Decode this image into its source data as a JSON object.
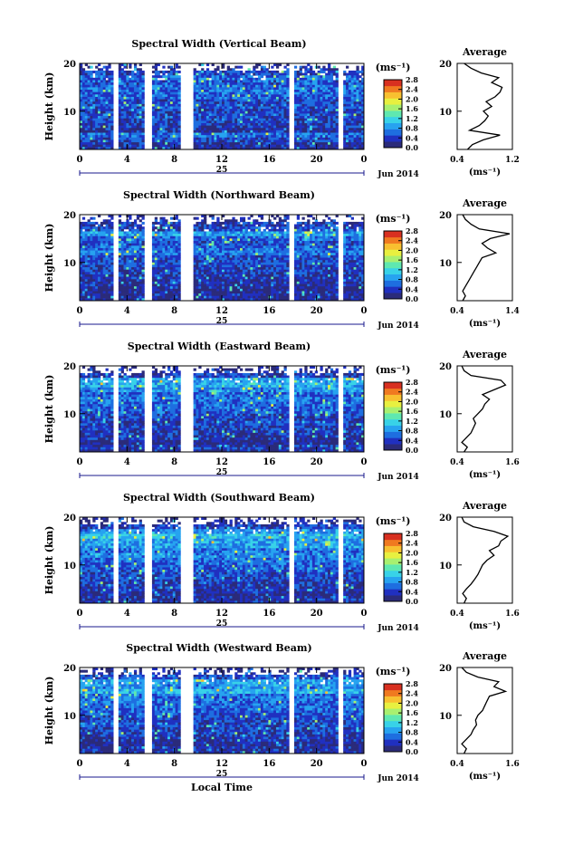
{
  "figure": {
    "xlabel": "Local Time",
    "date_label": "Jun 2014",
    "day_label": "25",
    "unit_label": "(ms⁻¹)",
    "avg_title": "Average",
    "ylabel": "Height (km)",
    "colormap": [
      "#2b2b7a",
      "#2030c0",
      "#1e6ee0",
      "#27a3f0",
      "#38d2e8",
      "#5fe8b0",
      "#a8f070",
      "#e8f040",
      "#f8c030",
      "#f07a20",
      "#d83020"
    ],
    "missing_color": "#ffffff"
  },
  "chart_data": [
    {
      "type": "heatmap",
      "title": "Spectral Width (Vertical Beam)",
      "xlabel": "",
      "ylabel": "Height (km)",
      "xlim": [
        0,
        24
      ],
      "ylim": [
        2,
        20
      ],
      "xticks": [
        "0",
        "4",
        "8",
        "12",
        "16",
        "20",
        "0"
      ],
      "yticks": [
        "10",
        "20"
      ],
      "colorbar_ticks": [
        "0.0",
        "0.4",
        "0.8",
        "1.2",
        "1.6",
        "2.0",
        "2.4",
        "2.8"
      ],
      "data_gaps_hours": [
        [
          2.8,
          3.3
        ],
        [
          5.5,
          6.0
        ],
        [
          8.5,
          9.5
        ],
        [
          17.6,
          18.0
        ],
        [
          21.8,
          22.2
        ]
      ],
      "average": {
        "xlim": [
          0.4,
          1.2
        ],
        "xticks": [
          "0.4",
          "1.2"
        ],
        "xlabel": "(ms⁻¹)",
        "height_km": [
          2,
          3,
          4,
          5,
          6,
          7,
          8,
          9,
          10,
          11,
          12,
          13,
          14,
          15,
          16,
          17,
          18,
          19,
          20
        ],
        "width_ms": [
          0.55,
          0.62,
          0.78,
          1.02,
          0.58,
          0.72,
          0.8,
          0.85,
          0.78,
          0.9,
          0.82,
          0.95,
          1.02,
          1.05,
          0.9,
          1.0,
          0.75,
          0.6,
          0.5
        ]
      }
    },
    {
      "type": "heatmap",
      "title": "Spectral Width (Northward Beam)",
      "xlabel": "",
      "ylabel": "Height (km)",
      "xlim": [
        0,
        24
      ],
      "ylim": [
        2,
        20
      ],
      "xticks": [
        "0",
        "4",
        "8",
        "12",
        "16",
        "20",
        "0"
      ],
      "yticks": [
        "10",
        "20"
      ],
      "colorbar_ticks": [
        "0.0",
        "0.4",
        "0.8",
        "1.2",
        "1.6",
        "2.0",
        "2.4",
        "2.8"
      ],
      "data_gaps_hours": [
        [
          2.8,
          3.3
        ],
        [
          5.5,
          6.0
        ],
        [
          8.5,
          9.5
        ],
        [
          17.6,
          18.0
        ],
        [
          21.8,
          22.2
        ]
      ],
      "average": {
        "xlim": [
          0.4,
          1.4
        ],
        "xticks": [
          "0.4",
          "1.4"
        ],
        "xlabel": "(ms⁻¹)",
        "height_km": [
          2,
          3,
          4,
          5,
          6,
          7,
          8,
          9,
          10,
          11,
          12,
          13,
          14,
          15,
          16,
          17,
          18,
          19,
          20
        ],
        "width_ms": [
          0.5,
          0.55,
          0.5,
          0.55,
          0.6,
          0.65,
          0.7,
          0.75,
          0.8,
          0.85,
          1.1,
          0.95,
          0.85,
          1.0,
          1.35,
          0.8,
          0.65,
          0.55,
          0.5
        ]
      }
    },
    {
      "type": "heatmap",
      "title": "Spectral Width (Eastward Beam)",
      "xlabel": "",
      "ylabel": "Height (km)",
      "xlim": [
        0,
        24
      ],
      "ylim": [
        2,
        20
      ],
      "xticks": [
        "0",
        "4",
        "8",
        "12",
        "16",
        "20",
        "0"
      ],
      "yticks": [
        "10",
        "20"
      ],
      "colorbar_ticks": [
        "0.0",
        "0.4",
        "0.8",
        "1.2",
        "1.6",
        "2.0",
        "2.4",
        "2.8"
      ],
      "data_gaps_hours": [
        [
          2.8,
          3.3
        ],
        [
          5.5,
          6.0
        ],
        [
          8.5,
          9.5
        ],
        [
          17.6,
          18.0
        ],
        [
          21.8,
          22.2
        ]
      ],
      "average": {
        "xlim": [
          0.4,
          1.6
        ],
        "xticks": [
          "0.4",
          "1.6"
        ],
        "xlabel": "(ms⁻¹)",
        "height_km": [
          2,
          3,
          4,
          5,
          6,
          7,
          8,
          9,
          10,
          11,
          12,
          13,
          14,
          15,
          16,
          17,
          18,
          19,
          20
        ],
        "width_ms": [
          0.55,
          0.62,
          0.5,
          0.6,
          0.7,
          0.75,
          0.8,
          0.75,
          0.85,
          0.95,
          1.0,
          1.1,
          0.95,
          1.2,
          1.45,
          1.35,
          0.7,
          0.55,
          0.5
        ]
      }
    },
    {
      "type": "heatmap",
      "title": "Spectral Width (Southward Beam)",
      "xlabel": "",
      "ylabel": "Height (km)",
      "xlim": [
        0,
        24
      ],
      "ylim": [
        2,
        20
      ],
      "xticks": [
        "0",
        "4",
        "8",
        "12",
        "16",
        "20",
        "0"
      ],
      "yticks": [
        "10",
        "20"
      ],
      "colorbar_ticks": [
        "0.0",
        "0.4",
        "0.8",
        "1.2",
        "1.6",
        "2.0",
        "2.4",
        "2.8"
      ],
      "data_gaps_hours": [
        [
          2.8,
          3.3
        ],
        [
          5.5,
          6.0
        ],
        [
          8.5,
          9.5
        ],
        [
          17.6,
          18.0
        ],
        [
          21.8,
          22.2
        ]
      ],
      "average": {
        "xlim": [
          0.4,
          1.6
        ],
        "xticks": [
          "0.4",
          "1.6"
        ],
        "xlabel": "(ms⁻¹)",
        "height_km": [
          2,
          3,
          4,
          5,
          6,
          7,
          8,
          9,
          10,
          11,
          12,
          13,
          14,
          15,
          16,
          17,
          18,
          19,
          20
        ],
        "width_ms": [
          0.55,
          0.6,
          0.52,
          0.6,
          0.7,
          0.78,
          0.85,
          0.9,
          0.95,
          1.05,
          1.2,
          1.1,
          1.3,
          1.35,
          1.5,
          1.2,
          0.75,
          0.55,
          0.5
        ]
      }
    },
    {
      "type": "heatmap",
      "title": "Spectral Width (Westward Beam)",
      "xlabel": "Local Time",
      "ylabel": "Height (km)",
      "xlim": [
        0,
        24
      ],
      "ylim": [
        2,
        20
      ],
      "xticks": [
        "0",
        "4",
        "8",
        "12",
        "16",
        "20",
        "0"
      ],
      "yticks": [
        "10",
        "20"
      ],
      "colorbar_ticks": [
        "0.0",
        "0.4",
        "0.8",
        "1.2",
        "1.6",
        "2.0",
        "2.4",
        "2.8"
      ],
      "data_gaps_hours": [
        [
          2.8,
          3.3
        ],
        [
          5.5,
          6.0
        ],
        [
          8.5,
          9.5
        ],
        [
          17.6,
          18.0
        ],
        [
          21.8,
          22.2
        ]
      ],
      "average": {
        "xlim": [
          0.4,
          1.6
        ],
        "xticks": [
          "0.4",
          "1.6"
        ],
        "xlabel": "(ms⁻¹)",
        "height_km": [
          2,
          3,
          4,
          5,
          6,
          7,
          8,
          9,
          10,
          11,
          12,
          13,
          14,
          15,
          16,
          17,
          18,
          19,
          20
        ],
        "width_ms": [
          0.55,
          0.6,
          0.5,
          0.6,
          0.7,
          0.75,
          0.82,
          0.8,
          0.85,
          0.95,
          1.0,
          1.05,
          1.1,
          1.45,
          1.2,
          1.3,
          0.85,
          0.6,
          0.5
        ]
      }
    }
  ]
}
